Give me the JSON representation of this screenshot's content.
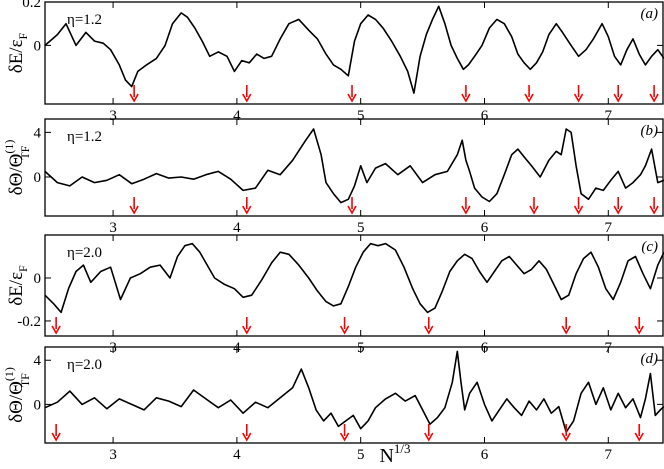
{
  "colors": {
    "curve": "#000000",
    "arrow": "#ff0000",
    "frame": "#000000"
  },
  "x_axis": {
    "label": "N",
    "label_sup": "1/3",
    "ticks": [
      3,
      4,
      5,
      6,
      7
    ],
    "xlim": [
      2.45,
      7.45
    ]
  },
  "chart_data": [
    {
      "type": "line",
      "panel_label": "(a)",
      "annotation": "η=1.2",
      "ylabel": "δE/ε",
      "ylabel_sub": "F",
      "ylabel_sup": "",
      "ylim": [
        -0.27,
        0.2
      ],
      "yticks": [
        {
          "v": 0.2,
          "t": "0.2"
        },
        {
          "v": 0,
          "t": "0"
        }
      ],
      "arrows_x": [
        3.17,
        4.08,
        4.93,
        5.85,
        6.36,
        6.76,
        7.08,
        7.37
      ],
      "x": [
        2.45,
        2.55,
        2.62,
        2.7,
        2.78,
        2.85,
        2.92,
        2.98,
        3.05,
        3.1,
        3.15,
        3.2,
        3.27,
        3.35,
        3.42,
        3.48,
        3.55,
        3.6,
        3.66,
        3.72,
        3.78,
        3.85,
        3.92,
        3.98,
        4.04,
        4.1,
        4.16,
        4.22,
        4.28,
        4.35,
        4.42,
        4.5,
        4.58,
        4.65,
        4.72,
        4.78,
        4.84,
        4.9,
        4.95,
        5.0,
        5.06,
        5.12,
        5.18,
        5.25,
        5.32,
        5.38,
        5.43,
        5.48,
        5.53,
        5.58,
        5.63,
        5.68,
        5.73,
        5.78,
        5.83,
        5.87,
        5.92,
        5.98,
        6.04,
        6.1,
        6.16,
        6.22,
        6.27,
        6.32,
        6.37,
        6.42,
        6.47,
        6.52,
        6.58,
        6.63,
        6.7,
        6.76,
        6.82,
        6.88,
        6.95,
        7.0,
        7.05,
        7.1,
        7.15,
        7.2,
        7.25,
        7.3,
        7.35,
        7.4,
        7.45
      ],
      "y": [
        0.0,
        0.05,
        0.1,
        0.0,
        0.06,
        0.02,
        0.01,
        -0.02,
        -0.09,
        -0.16,
        -0.19,
        -0.12,
        -0.09,
        -0.06,
        0.0,
        0.1,
        0.15,
        0.13,
        0.08,
        0.02,
        -0.05,
        -0.03,
        -0.05,
        -0.12,
        -0.07,
        -0.08,
        -0.04,
        -0.06,
        -0.05,
        0.03,
        0.1,
        0.12,
        0.07,
        0.03,
        -0.04,
        -0.09,
        -0.11,
        -0.14,
        0.02,
        0.1,
        0.14,
        0.12,
        0.08,
        0.02,
        -0.05,
        -0.12,
        -0.22,
        -0.05,
        0.05,
        0.12,
        0.18,
        0.1,
        0.0,
        -0.06,
        -0.11,
        -0.09,
        -0.05,
        0.0,
        0.08,
        0.12,
        0.1,
        0.04,
        -0.04,
        -0.08,
        -0.11,
        -0.08,
        -0.03,
        0.05,
        0.1,
        0.06,
        0.0,
        -0.05,
        -0.02,
        0.03,
        0.1,
        0.04,
        -0.05,
        -0.09,
        -0.02,
        0.03,
        -0.04,
        -0.09,
        -0.05,
        -0.02,
        -0.06
      ]
    },
    {
      "type": "line",
      "panel_label": "(b)",
      "annotation": "η=1.2",
      "ylabel": "δΘ/Θ",
      "ylabel_sub": "TF",
      "ylabel_sup": "(1)",
      "ylim": [
        -3.5,
        5.2
      ],
      "yticks": [
        {
          "v": 4,
          "t": "4"
        },
        {
          "v": 0,
          "t": "0"
        }
      ],
      "arrows_x": [
        3.17,
        4.08,
        4.93,
        5.85,
        6.4,
        6.76,
        7.08,
        7.37
      ],
      "x": [
        2.45,
        2.55,
        2.65,
        2.75,
        2.85,
        2.95,
        3.05,
        3.15,
        3.25,
        3.35,
        3.45,
        3.55,
        3.65,
        3.75,
        3.85,
        3.95,
        4.05,
        4.15,
        4.25,
        4.35,
        4.45,
        4.55,
        4.62,
        4.68,
        4.72,
        4.78,
        4.84,
        4.9,
        4.95,
        5.0,
        5.05,
        5.12,
        5.2,
        5.3,
        5.4,
        5.5,
        5.6,
        5.7,
        5.78,
        5.82,
        5.85,
        5.88,
        5.92,
        5.98,
        6.04,
        6.1,
        6.16,
        6.22,
        6.27,
        6.32,
        6.38,
        6.45,
        6.52,
        6.58,
        6.62,
        6.66,
        6.7,
        6.74,
        6.78,
        6.84,
        6.9,
        6.96,
        7.02,
        7.08,
        7.14,
        7.2,
        7.26,
        7.3,
        7.35,
        7.4,
        7.45
      ],
      "y": [
        0.5,
        -0.5,
        -0.8,
        0.0,
        -0.5,
        -0.3,
        0.2,
        -0.6,
        -0.2,
        0.3,
        -0.1,
        0.0,
        -0.2,
        0.2,
        0.5,
        -0.2,
        -1.2,
        -1.0,
        0.6,
        0.2,
        1.5,
        3.2,
        4.3,
        2.0,
        -0.5,
        -1.5,
        -2.3,
        -2.0,
        -0.8,
        1.0,
        -0.5,
        0.8,
        1.2,
        0.2,
        1.0,
        -0.5,
        0.2,
        0.5,
        2.0,
        3.3,
        1.5,
        0.5,
        -1.0,
        -1.8,
        -2.2,
        -1.5,
        0.2,
        2.0,
        2.5,
        1.8,
        1.0,
        0.0,
        1.5,
        2.3,
        2.0,
        4.3,
        4.0,
        1.0,
        -1.5,
        -2.0,
        -1.0,
        -1.2,
        -0.3,
        0.5,
        -1.0,
        -0.5,
        0.2,
        1.0,
        2.5,
        -0.5,
        -0.3
      ]
    },
    {
      "type": "line",
      "panel_label": "(c)",
      "annotation": "η=2.0",
      "ylabel": "δE/ε",
      "ylabel_sub": "F",
      "ylabel_sup": "",
      "ylim": [
        -0.27,
        0.2
      ],
      "yticks": [
        {
          "v": 0,
          "t": "0"
        },
        {
          "v": -0.2,
          "t": "-0.2"
        }
      ],
      "arrows_x": [
        2.54,
        4.08,
        4.87,
        5.55,
        6.66,
        7.25
      ],
      "x": [
        2.45,
        2.52,
        2.58,
        2.64,
        2.7,
        2.76,
        2.82,
        2.9,
        2.98,
        3.06,
        3.14,
        3.22,
        3.3,
        3.38,
        3.46,
        3.52,
        3.58,
        3.64,
        3.7,
        3.76,
        3.82,
        3.9,
        3.98,
        4.05,
        4.12,
        4.2,
        4.28,
        4.35,
        4.42,
        4.5,
        4.58,
        4.65,
        4.72,
        4.78,
        4.84,
        4.9,
        4.96,
        5.02,
        5.08,
        5.14,
        5.2,
        5.28,
        5.35,
        5.42,
        5.48,
        5.54,
        5.6,
        5.66,
        5.72,
        5.78,
        5.84,
        5.9,
        5.96,
        6.02,
        6.08,
        6.14,
        6.2,
        6.26,
        6.32,
        6.38,
        6.44,
        6.5,
        6.56,
        6.62,
        6.68,
        6.74,
        6.8,
        6.86,
        6.92,
        6.98,
        7.04,
        7.1,
        7.16,
        7.22,
        7.28,
        7.34,
        7.4,
        7.45
      ],
      "y": [
        -0.08,
        -0.12,
        -0.16,
        -0.05,
        0.03,
        0.06,
        -0.02,
        0.03,
        0.05,
        -0.1,
        0.0,
        0.02,
        0.05,
        0.06,
        0.0,
        0.1,
        0.15,
        0.16,
        0.12,
        0.06,
        0.0,
        -0.03,
        -0.05,
        -0.09,
        -0.08,
        -0.01,
        0.07,
        0.12,
        0.11,
        0.06,
        0.0,
        -0.06,
        -0.11,
        -0.13,
        -0.12,
        -0.04,
        0.05,
        0.12,
        0.16,
        0.15,
        0.16,
        0.13,
        0.05,
        -0.05,
        -0.12,
        -0.16,
        -0.14,
        -0.06,
        0.03,
        0.08,
        0.11,
        0.09,
        0.03,
        -0.02,
        0.03,
        0.08,
        0.1,
        0.06,
        0.02,
        0.04,
        0.08,
        0.04,
        -0.03,
        -0.1,
        -0.08,
        0.02,
        0.09,
        0.12,
        0.05,
        -0.05,
        -0.1,
        -0.02,
        0.08,
        0.1,
        0.02,
        -0.05,
        0.06,
        0.12
      ]
    },
    {
      "type": "line",
      "panel_label": "(d)",
      "annotation": "η=2.0",
      "ylabel": "δΘ/Θ",
      "ylabel_sub": "TF",
      "ylabel_sup": "(1)",
      "ylim": [
        -3.5,
        5.2
      ],
      "yticks": [
        {
          "v": 4,
          "t": "4"
        },
        {
          "v": 0,
          "t": "0"
        }
      ],
      "arrows_x": [
        2.54,
        4.08,
        4.87,
        5.55,
        6.66,
        7.25
      ],
      "x": [
        2.45,
        2.55,
        2.65,
        2.75,
        2.85,
        2.95,
        3.05,
        3.15,
        3.25,
        3.35,
        3.45,
        3.55,
        3.65,
        3.75,
        3.85,
        3.95,
        4.05,
        4.15,
        4.25,
        4.35,
        4.45,
        4.52,
        4.58,
        4.64,
        4.7,
        4.76,
        4.82,
        4.88,
        4.94,
        5.0,
        5.06,
        5.12,
        5.2,
        5.28,
        5.36,
        5.44,
        5.5,
        5.56,
        5.62,
        5.68,
        5.74,
        5.78,
        5.81,
        5.84,
        5.88,
        5.94,
        6.0,
        6.06,
        6.12,
        6.18,
        6.24,
        6.3,
        6.36,
        6.42,
        6.48,
        6.54,
        6.6,
        6.66,
        6.72,
        6.78,
        6.84,
        6.9,
        6.96,
        7.02,
        7.08,
        7.14,
        7.2,
        7.26,
        7.3,
        7.34,
        7.38,
        7.42,
        7.45
      ],
      "y": [
        -0.3,
        0.2,
        1.2,
        0.0,
        0.6,
        -0.4,
        0.5,
        0.0,
        -0.5,
        0.6,
        0.3,
        -0.2,
        1.3,
        0.5,
        -0.3,
        0.4,
        -0.8,
        0.2,
        -0.3,
        0.6,
        1.5,
        3.2,
        1.5,
        -0.5,
        -1.5,
        -0.8,
        -2.0,
        -1.5,
        -1.0,
        -2.2,
        -1.5,
        -0.3,
        0.5,
        1.0,
        0.3,
        0.8,
        -0.5,
        -1.8,
        -1.2,
        -0.3,
        2.0,
        4.8,
        2.0,
        -0.5,
        1.0,
        2.0,
        0.0,
        -1.5,
        -0.5,
        0.5,
        -0.3,
        -1.0,
        0.3,
        -0.5,
        0.5,
        -0.8,
        -0.2,
        -2.5,
        -1.5,
        1.0,
        2.0,
        0.0,
        1.5,
        -0.5,
        1.0,
        -0.3,
        0.5,
        -1.2,
        0.5,
        2.8,
        -1.0,
        -0.5,
        -0.2
      ]
    }
  ]
}
